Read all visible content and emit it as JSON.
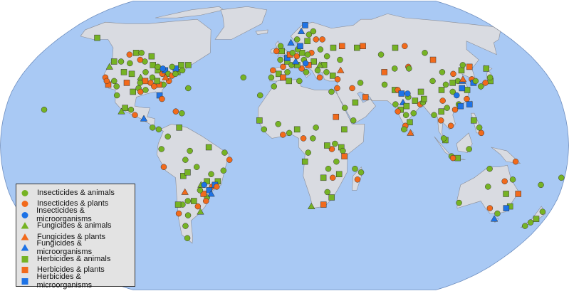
{
  "map": {
    "projection": "Robinson",
    "ocean_color": "#a9c9f4",
    "land_color": "#d9dbe1",
    "border_color": "#8a8d96"
  },
  "categories": [
    {
      "label": "Insecticides & animals",
      "shape": "circle",
      "color": "#76b324"
    },
    {
      "label": "Insecticides & plants",
      "shape": "circle",
      "color": "#f26a1b"
    },
    {
      "label": "Insecticides & microorganisms",
      "shape": "circle",
      "color": "#1e73e6"
    },
    {
      "label": "Fungicides & animals",
      "shape": "triangle",
      "color": "#76b324"
    },
    {
      "label": "Fungicides & plants",
      "shape": "triangle",
      "color": "#f26a1b"
    },
    {
      "label": "Fungicides & microorganisms",
      "shape": "triangle",
      "color": "#1e73e6"
    },
    {
      "label": "Herbicides & animals",
      "shape": "square",
      "color": "#76b324"
    },
    {
      "label": "Herbicides & plants",
      "shape": "square",
      "color": "#f26a1b"
    },
    {
      "label": "Herbicides & microorganisms",
      "shape": "square",
      "color": "#1e73e6"
    }
  ],
  "points_lon_lat_category": [
    [
      -122,
      47,
      6
    ],
    [
      -122,
      38,
      1
    ],
    [
      -118,
      34,
      7
    ],
    [
      -112,
      33,
      0
    ],
    [
      -105,
      40,
      6
    ],
    [
      -97,
      32,
      0
    ],
    [
      -95,
      30,
      1
    ],
    [
      -90,
      38,
      0
    ],
    [
      -88,
      42,
      6
    ],
    [
      -84,
      40,
      1
    ],
    [
      -83,
      42,
      8
    ],
    [
      -80,
      40,
      0
    ],
    [
      -77,
      39,
      1
    ],
    [
      -74,
      41,
      6
    ],
    [
      -71,
      42,
      0
    ],
    [
      -78,
      36,
      1
    ],
    [
      -81,
      34,
      0
    ],
    [
      -84,
      34,
      7
    ],
    [
      -86,
      36,
      6
    ],
    [
      -90,
      35,
      1
    ],
    [
      -92,
      31,
      0
    ],
    [
      -82,
      28,
      8
    ],
    [
      -80,
      26,
      1
    ],
    [
      -96,
      41,
      0
    ],
    [
      -93,
      45,
      6
    ],
    [
      -100,
      47,
      0
    ],
    [
      -106,
      35,
      7
    ],
    [
      -111,
      41,
      6
    ],
    [
      -117,
      47,
      0
    ],
    [
      -120,
      36,
      1
    ],
    [
      -98,
      38,
      3
    ],
    [
      -89,
      44,
      0
    ],
    [
      -76,
      43,
      8
    ],
    [
      -73,
      45,
      6
    ],
    [
      -79,
      44,
      0
    ],
    [
      -87,
      33,
      1
    ],
    [
      -94,
      36,
      7
    ],
    [
      -97,
      35,
      0
    ],
    [
      -100,
      30,
      6
    ],
    [
      -85,
      43,
      2
    ],
    [
      -81,
      38,
      4
    ],
    [
      -75,
      40,
      0
    ],
    [
      -68,
      45,
      6
    ],
    [
      -104,
      48,
      1
    ],
    [
      -110,
      46,
      0
    ],
    [
      -123,
      44,
      3
    ],
    [
      -115,
      36,
      0
    ],
    [
      -99,
      20,
      0
    ],
    [
      -103,
      21,
      6
    ],
    [
      -110,
      28,
      0
    ],
    [
      -96,
      17,
      1
    ],
    [
      -90,
      15,
      5
    ],
    [
      -84,
      10,
      0
    ],
    [
      -110,
      52,
      6
    ],
    [
      -114,
      51,
      1
    ],
    [
      -106,
      52,
      0
    ],
    [
      -97,
      50,
      6
    ],
    [
      -80,
      9,
      0
    ],
    [
      -66,
      18,
      0
    ],
    [
      -155,
      20,
      0
    ],
    [
      -150,
      61,
      6
    ],
    [
      -105,
      19,
      3
    ],
    [
      -74,
      5,
      0
    ],
    [
      -67,
      10,
      6
    ],
    [
      -78,
      -2,
      0
    ],
    [
      -77,
      -12,
      1
    ],
    [
      -60,
      -3,
      0
    ],
    [
      -48,
      -1,
      6
    ],
    [
      -38,
      -4,
      0
    ],
    [
      -35,
      -8,
      1
    ],
    [
      -39,
      -14,
      0
    ],
    [
      -43,
      -20,
      6
    ],
    [
      -47,
      -23,
      1
    ],
    [
      -49,
      -25,
      8
    ],
    [
      -51,
      -29,
      0
    ],
    [
      -53,
      -27,
      7
    ],
    [
      -55,
      -25,
      0
    ],
    [
      -58,
      -34,
      1
    ],
    [
      -60,
      -31,
      6
    ],
    [
      -64,
      -31,
      0
    ],
    [
      -65,
      -26,
      4
    ],
    [
      -68,
      -33,
      0
    ],
    [
      -71,
      -33,
      6
    ],
    [
      -72,
      -38,
      1
    ],
    [
      -66,
      -39,
      0
    ],
    [
      -57,
      -37,
      3
    ],
    [
      -47,
      -16,
      0
    ],
    [
      -50,
      -20,
      6
    ],
    [
      -45,
      -22,
      8
    ],
    [
      -44,
      -23,
      1
    ],
    [
      -54,
      -22,
      3
    ],
    [
      -52,
      -22,
      2
    ],
    [
      -48,
      -27,
      5
    ],
    [
      -56,
      -12,
      0
    ],
    [
      -65,
      -17,
      6
    ],
    [
      -63,
      -8,
      0
    ],
    [
      -52,
      -31,
      1
    ],
    [
      -70,
      -45,
      0
    ],
    [
      -72,
      -52,
      0
    ],
    [
      -62,
      -15,
      6
    ],
    [
      -9,
      38,
      0
    ],
    [
      -8,
      42,
      1
    ],
    [
      -4,
      40,
      6
    ],
    [
      -1,
      38,
      7
    ],
    [
      2,
      41,
      0
    ],
    [
      -1,
      44,
      1
    ],
    [
      2,
      47,
      6
    ],
    [
      5,
      45,
      0
    ],
    [
      2,
      49,
      8
    ],
    [
      -3,
      48,
      0
    ],
    [
      -2,
      53,
      6
    ],
    [
      -6,
      53,
      1
    ],
    [
      -3,
      56,
      0
    ],
    [
      4,
      51,
      7
    ],
    [
      6,
      52,
      0
    ],
    [
      9,
      50,
      1
    ],
    [
      13,
      52,
      6
    ],
    [
      10,
      54,
      0
    ],
    [
      12,
      56,
      8
    ],
    [
      10,
      60,
      0
    ],
    [
      18,
      59,
      6
    ],
    [
      25,
      60,
      1
    ],
    [
      24,
      65,
      0
    ],
    [
      20,
      52,
      1
    ],
    [
      17,
      51,
      0
    ],
    [
      21,
      47,
      6
    ],
    [
      14,
      48,
      0
    ],
    [
      12,
      43,
      1
    ],
    [
      9,
      45,
      6
    ],
    [
      15,
      41,
      0
    ],
    [
      17,
      45,
      7
    ],
    [
      23,
      42,
      0
    ],
    [
      28,
      45,
      6
    ],
    [
      24,
      38,
      1
    ],
    [
      29,
      41,
      0
    ],
    [
      33,
      39,
      6
    ],
    [
      36,
      37,
      1
    ],
    [
      31,
      50,
      0
    ],
    [
      37,
      55,
      6
    ],
    [
      44,
      56,
      7
    ],
    [
      27,
      54,
      0
    ],
    [
      10,
      36,
      0
    ],
    [
      -7,
      33,
      0
    ],
    [
      3,
      36,
      6
    ],
    [
      31,
      30,
      0
    ],
    [
      35,
      32,
      1
    ],
    [
      5,
      58,
      5
    ],
    [
      14,
      65,
      5
    ],
    [
      18,
      69,
      8
    ],
    [
      20,
      63,
      0
    ],
    [
      8,
      47,
      5
    ],
    [
      15,
      46,
      2
    ],
    [
      25,
      45,
      3
    ],
    [
      40,
      48,
      0
    ],
    [
      55,
      55,
      6
    ],
    [
      60,
      56,
      7
    ],
    [
      30,
      60,
      1
    ],
    [
      39,
      42,
      4
    ],
    [
      45,
      32,
      1
    ],
    [
      51,
      35,
      0
    ],
    [
      46,
      24,
      6
    ],
    [
      39,
      21,
      0
    ],
    [
      44,
      14,
      0
    ],
    [
      53,
      27,
      7
    ],
    [
      38,
      9,
      6
    ],
    [
      33,
      16,
      7
    ],
    [
      32,
      1,
      0
    ],
    [
      36,
      -1,
      6
    ],
    [
      37,
      -3,
      0
    ],
    [
      30,
      -2,
      1
    ],
    [
      27,
      0,
      6
    ],
    [
      18,
      4,
      0
    ],
    [
      8,
      9,
      6
    ],
    [
      3,
      7,
      0
    ],
    [
      -1,
      6,
      1
    ],
    [
      -4,
      12,
      0
    ],
    [
      -16,
      14,
      6
    ],
    [
      -13,
      9,
      0
    ],
    [
      12,
      4,
      1
    ],
    [
      15,
      -4,
      0
    ],
    [
      13,
      -9,
      6
    ],
    [
      28,
      -13,
      0
    ],
    [
      31,
      -18,
      1
    ],
    [
      35,
      -16,
      6
    ],
    [
      28,
      -26,
      0
    ],
    [
      31,
      -29,
      6
    ],
    [
      18,
      -34,
      3
    ],
    [
      26,
      -33,
      7
    ],
    [
      47,
      -19,
      1
    ],
    [
      49,
      -15,
      0
    ],
    [
      45,
      -13,
      0
    ],
    [
      33,
      -9,
      0
    ],
    [
      25,
      -18,
      6
    ],
    [
      38,
      -6,
      7
    ],
    [
      20,
      10,
      0
    ],
    [
      69,
      41,
      7
    ],
    [
      77,
      43,
      0
    ],
    [
      71,
      51,
      0
    ],
    [
      84,
      55,
      6
    ],
    [
      92,
      56,
      1
    ],
    [
      104,
      52,
      0
    ],
    [
      107,
      48,
      7
    ],
    [
      87,
      44,
      1
    ],
    [
      67,
      34,
      0
    ],
    [
      73,
      31,
      6
    ],
    [
      75,
      31,
      1
    ],
    [
      77,
      29,
      8
    ],
    [
      81,
      27,
      0
    ],
    [
      85,
      25,
      6
    ],
    [
      88,
      23,
      1
    ],
    [
      72,
      23,
      0
    ],
    [
      75,
      20,
      6
    ],
    [
      73,
      19,
      1
    ],
    [
      78,
      17,
      0
    ],
    [
      80,
      13,
      6
    ],
    [
      77,
      11,
      1
    ],
    [
      76,
      9,
      0
    ],
    [
      80,
      7,
      4
    ],
    [
      83,
      18,
      0
    ],
    [
      77,
      24,
      5
    ],
    [
      79,
      22,
      6
    ],
    [
      81,
      29,
      2
    ],
    [
      90,
      24,
      0
    ],
    [
      91,
      26,
      6
    ],
    [
      96,
      17,
      0
    ],
    [
      100,
      14,
      1
    ],
    [
      101,
      19,
      6
    ],
    [
      105,
      21,
      0
    ],
    [
      106,
      11,
      1
    ],
    [
      102,
      3,
      6
    ],
    [
      101,
      4,
      0
    ],
    [
      106,
      -6,
      0
    ],
    [
      110,
      -7,
      6
    ],
    [
      107,
      -7,
      1
    ],
    [
      117,
      -2,
      0
    ],
    [
      121,
      14,
      6
    ],
    [
      124,
      10,
      0
    ],
    [
      125,
      7,
      1
    ],
    [
      113,
      23,
      0
    ],
    [
      114,
      22,
      8
    ],
    [
      119,
      26,
      1
    ],
    [
      121,
      31,
      6
    ],
    [
      118,
      32,
      8
    ],
    [
      117,
      36,
      0
    ],
    [
      116,
      40,
      1
    ],
    [
      113,
      35,
      6
    ],
    [
      111,
      30,
      0
    ],
    [
      104,
      31,
      6
    ],
    [
      103,
      25,
      1
    ],
    [
      108,
      34,
      0
    ],
    [
      123,
      42,
      6
    ],
    [
      126,
      45,
      0
    ],
    [
      127,
      37,
      1
    ],
    [
      127,
      35,
      8
    ],
    [
      129,
      36,
      0
    ],
    [
      139,
      36,
      6
    ],
    [
      135,
      35,
      1
    ],
    [
      140,
      38,
      0
    ],
    [
      141,
      43,
      6
    ],
    [
      131,
      33,
      0
    ],
    [
      120,
      23,
      8
    ],
    [
      110,
      20,
      1
    ],
    [
      100,
      36,
      0
    ],
    [
      90,
      30,
      6
    ],
    [
      87,
      43,
      0
    ],
    [
      120,
      36,
      5
    ],
    [
      113,
      28,
      2
    ],
    [
      130,
      44,
      7
    ],
    [
      121,
      37,
      4
    ],
    [
      109,
      41,
      0
    ],
    [
      116,
      -32,
      0
    ],
    [
      138,
      -35,
      1
    ],
    [
      145,
      -38,
      0
    ],
    [
      151,
      -34,
      6
    ],
    [
      153,
      -27,
      7
    ],
    [
      147,
      -19,
      0
    ],
    [
      131,
      -13,
      0
    ],
    [
      149,
      -35,
      8
    ],
    [
      145,
      -41,
      5
    ],
    [
      175,
      -37,
      0
    ],
    [
      174,
      -41,
      6
    ],
    [
      172,
      -43,
      0
    ],
    [
      170,
      -45,
      0
    ],
    [
      147,
      -9,
      1
    ],
    [
      145,
      -27,
      6
    ],
    [
      132,
      -23,
      0
    ],
    [
      142,
      -20,
      1
    ],
    [
      166,
      -22,
      0
    ],
    [
      178,
      -18,
      0
    ],
    [
      -64,
      32,
      0
    ],
    [
      -28,
      38,
      0
    ],
    [
      -16,
      28,
      0
    ],
    [
      -70,
      19,
      1
    ]
  ]
}
